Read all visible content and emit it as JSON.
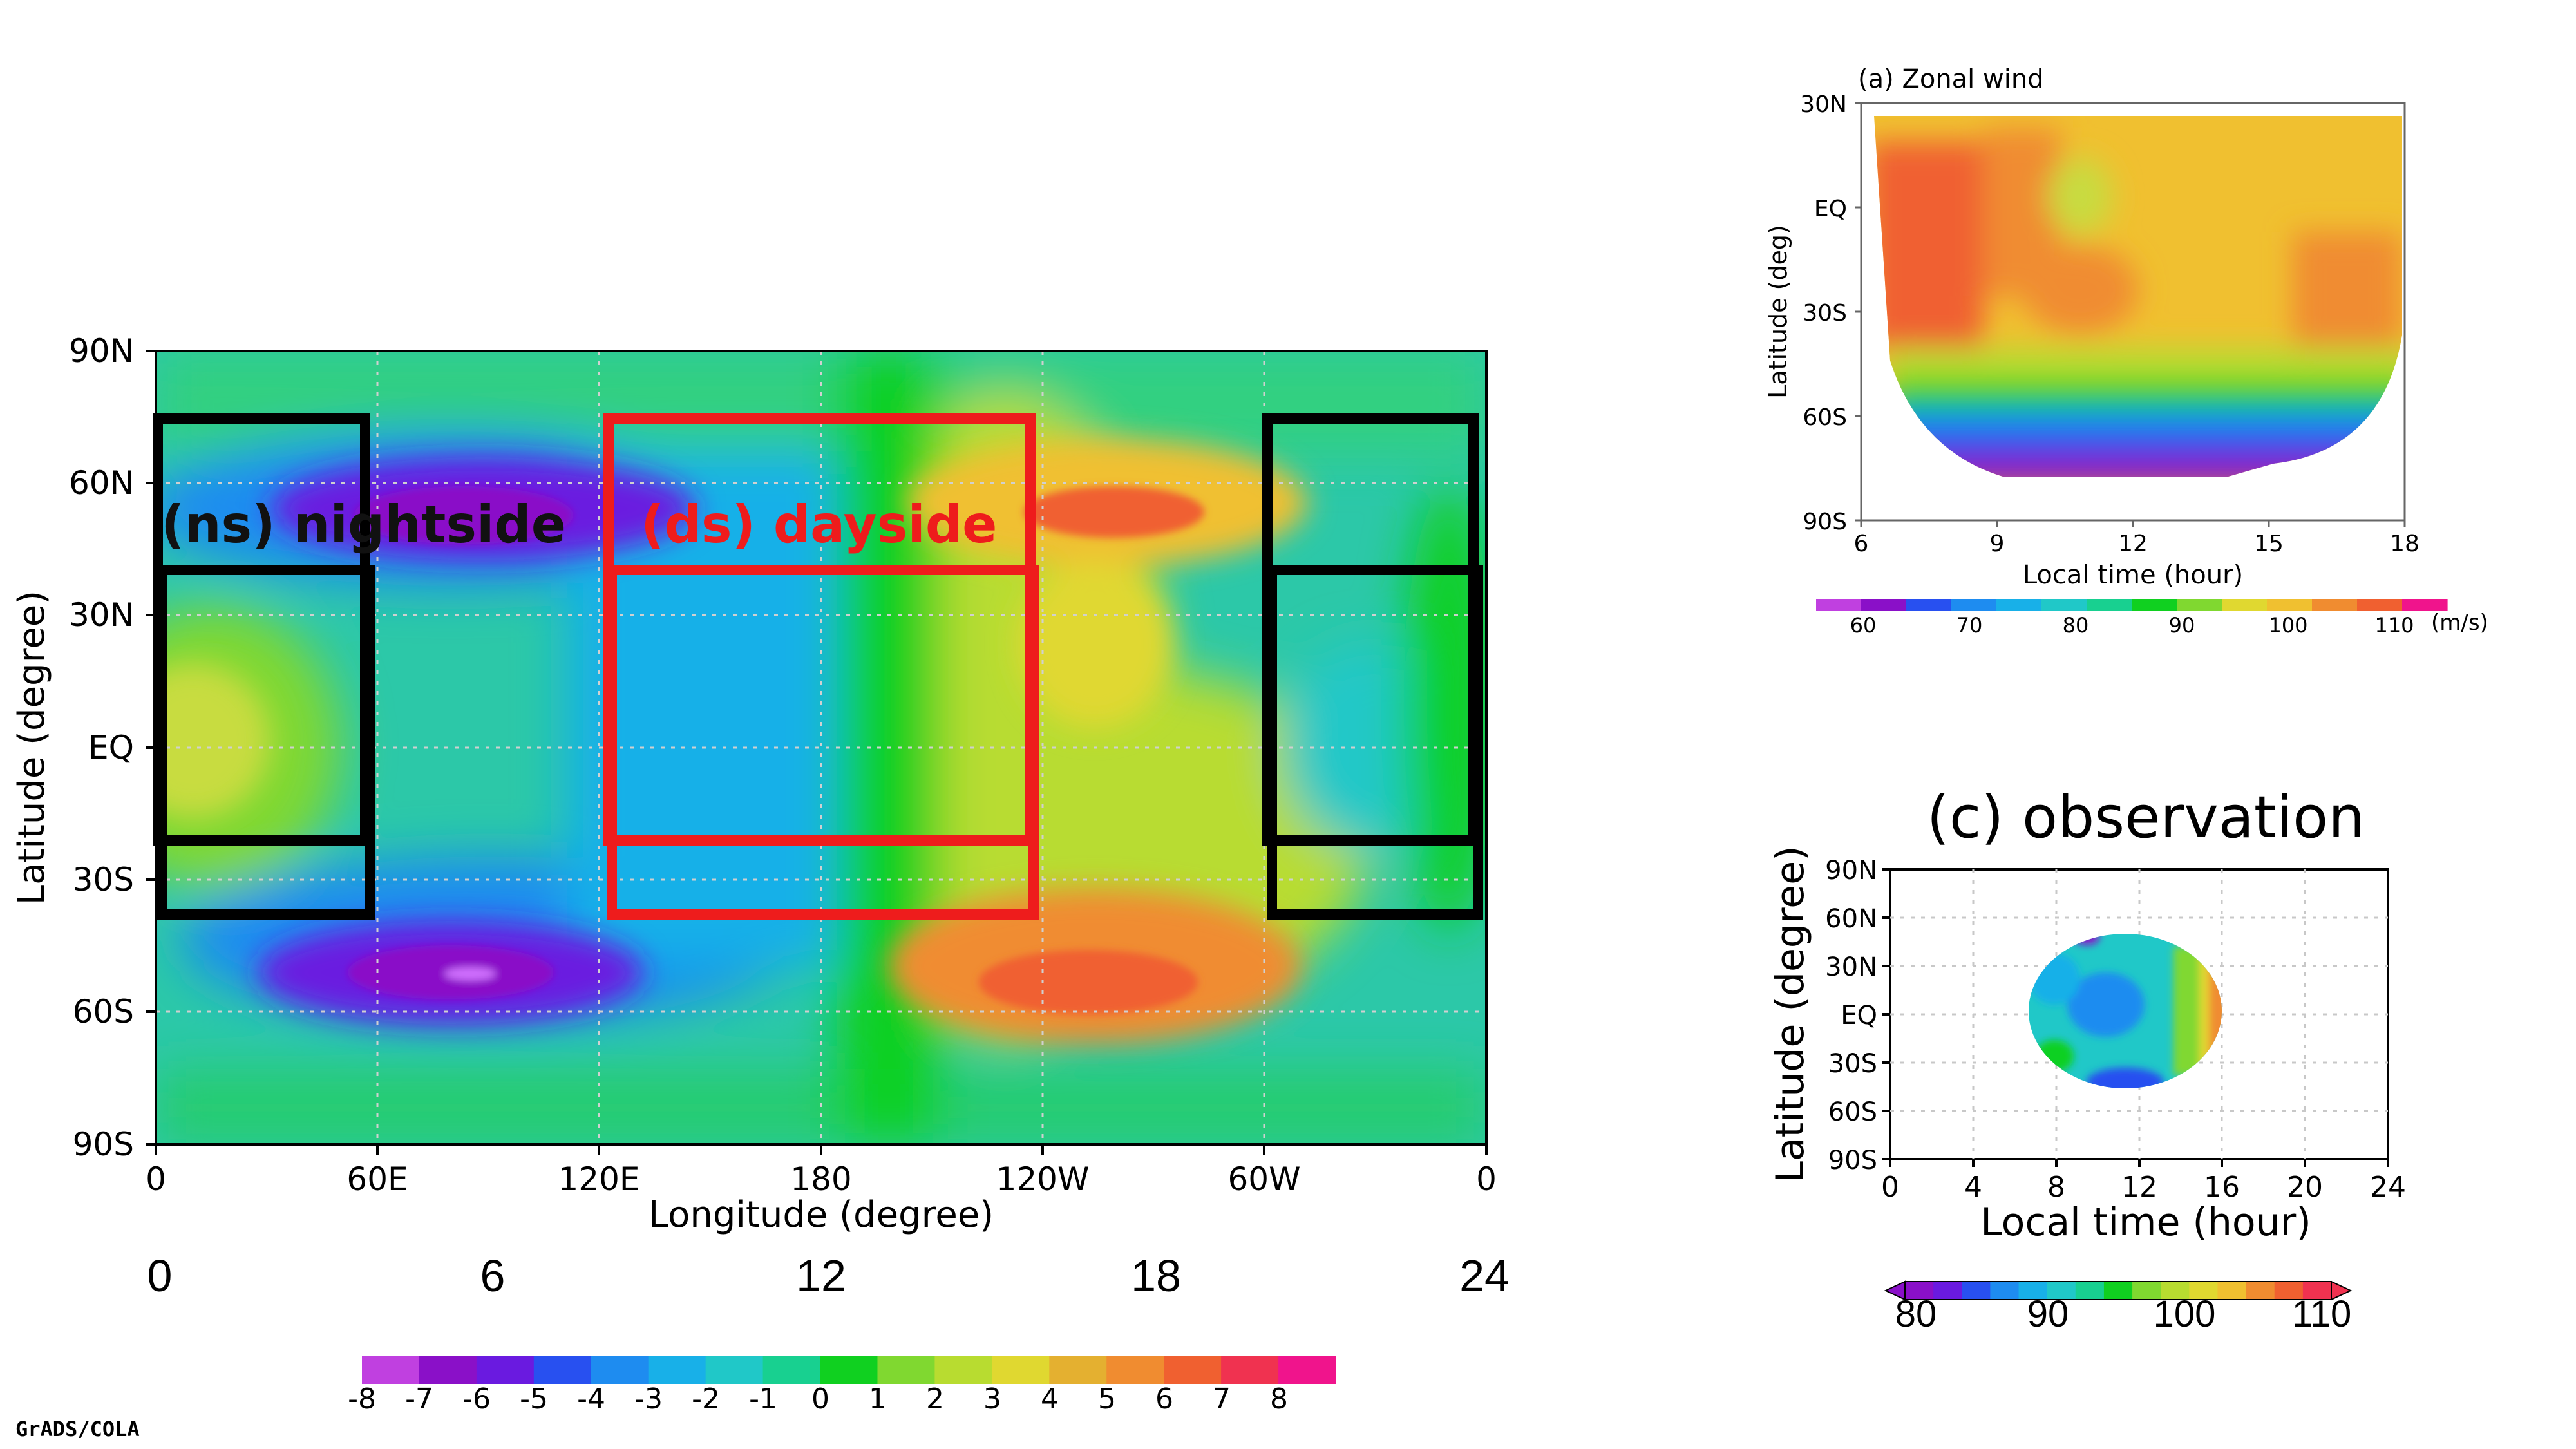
{
  "chart_data": [
    {
      "id": "main",
      "type": "heatmap",
      "title": "",
      "xlabel": "Longitude (degree)",
      "ylabel": "Latitude (degree)",
      "x_ticks": [
        "0",
        "60E",
        "120E",
        "180",
        "120W",
        "60W",
        "0"
      ],
      "y_ticks": [
        "90N",
        "60N",
        "30N",
        "EQ",
        "30S",
        "60S",
        "90S"
      ],
      "local_time_ticks": [
        "0",
        "6",
        "12",
        "18",
        "24"
      ],
      "xlim": [
        0,
        360
      ],
      "ylim": [
        -90,
        90
      ],
      "colorbar": {
        "levels": [
          "-8",
          "-7",
          "-6",
          "-5",
          "-4",
          "-3",
          "-2",
          "-1",
          "0",
          "1",
          "2",
          "3",
          "4",
          "5",
          "6",
          "7",
          "8"
        ],
        "colors": [
          "#c040e0",
          "#8a10c8",
          "#6a1ae0",
          "#2850f0",
          "#1e8cf0",
          "#18b0e8",
          "#20c8c8",
          "#18d090",
          "#10d020",
          "#80d830",
          "#b8dc30",
          "#e0d830",
          "#e4b030",
          "#f08c30",
          "#f06030",
          "#f03250",
          "#f0148c"
        ]
      },
      "regions": [
        {
          "label": "(ns) nightside",
          "color": "#000000",
          "side": "nightside"
        },
        {
          "label": "(ds) dayside",
          "color": "#ee1c1c",
          "side": "dayside"
        }
      ],
      "credit": "GrADS/COLA"
    },
    {
      "id": "a",
      "type": "heatmap",
      "title": "(a) Zonal wind",
      "xlabel": "Local time (hour)",
      "ylabel": "Latitude (deg)",
      "x_ticks": [
        "6",
        "9",
        "12",
        "15",
        "18"
      ],
      "y_ticks": [
        "30N",
        "EQ",
        "30S",
        "60S",
        "90S"
      ],
      "xlim": [
        6,
        18
      ],
      "ylim": [
        -90,
        30
      ],
      "colorbar": {
        "labels": [
          "60",
          "70",
          "80",
          "90",
          "100",
          "110"
        ],
        "unit": "(m/s)",
        "colors": [
          "#c040e0",
          "#8a10c8",
          "#2850f0",
          "#1e8cf0",
          "#18b0e8",
          "#20c8c8",
          "#18d090",
          "#10d020",
          "#80d830",
          "#e0d830",
          "#f0c030",
          "#f08c30",
          "#f06030",
          "#f0148c"
        ]
      }
    },
    {
      "id": "c",
      "type": "heatmap",
      "title": "(c) observation",
      "xlabel": "Local time (hour)",
      "ylabel": "Latitude (degree)",
      "x_ticks": [
        "0",
        "4",
        "8",
        "12",
        "16",
        "20",
        "24"
      ],
      "y_ticks": [
        "90N",
        "60N",
        "30N",
        "EQ",
        "30S",
        "60S",
        "90S"
      ],
      "xlim": [
        0,
        24
      ],
      "ylim": [
        -90,
        90
      ],
      "colorbar": {
        "labels": [
          "80",
          "90",
          "100",
          "110"
        ],
        "colors": [
          "#8a10c8",
          "#6a1ae0",
          "#2850f0",
          "#1e8cf0",
          "#18b0e8",
          "#20c8c8",
          "#18d090",
          "#10d020",
          "#80d830",
          "#b8dc30",
          "#e0d830",
          "#f0c030",
          "#f08c30",
          "#f06030",
          "#f03250"
        ]
      }
    }
  ]
}
